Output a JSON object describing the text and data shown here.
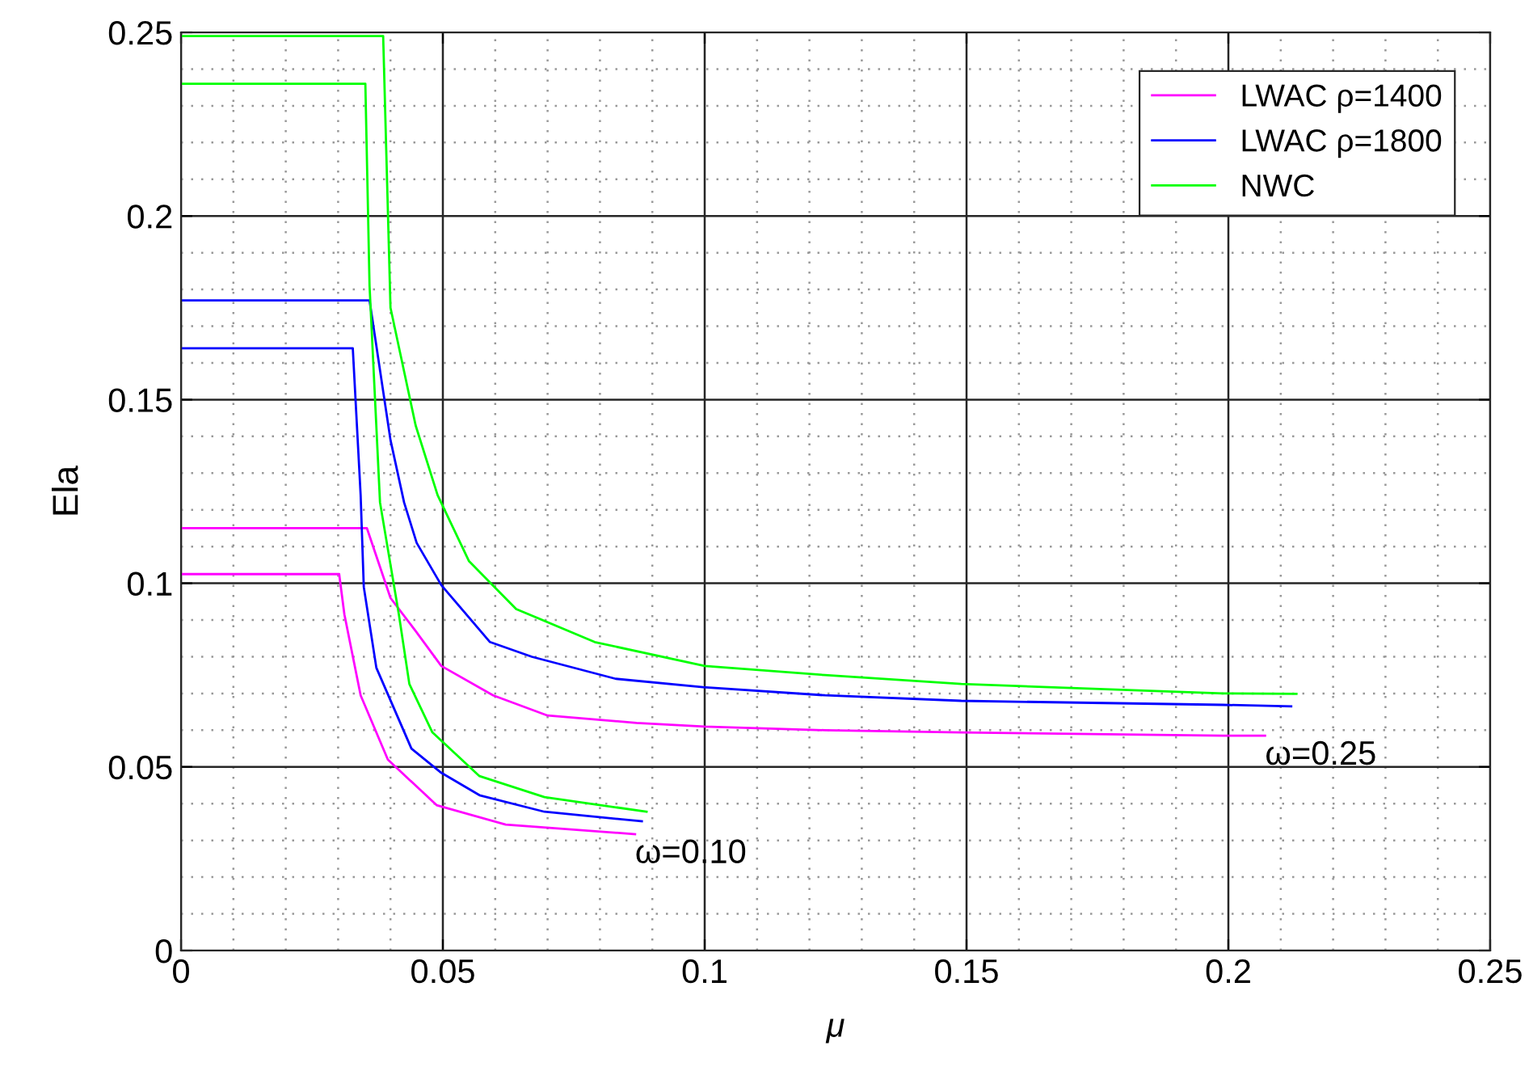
{
  "chart_data": {
    "type": "line",
    "xlabel": "μ",
    "ylabel": "Ela",
    "xlim": [
      0,
      0.25
    ],
    "ylim": [
      0,
      0.25
    ],
    "xticks": [
      0,
      0.05,
      0.1,
      0.15,
      0.2,
      0.25
    ],
    "yticks": [
      0,
      0.05,
      0.1,
      0.15,
      0.2,
      0.25
    ],
    "grid": true,
    "legend": "top right",
    "line_style": "solid",
    "marker": "none",
    "series": [
      {
        "name": "LWAC ρ=1400",
        "color": "#ff00ff",
        "x": [
          0,
          0.0355,
          0.04,
          0.0448,
          0.0497,
          0.0596,
          0.07,
          0.087,
          0.1,
          0.123,
          0.149,
          0.199,
          0.207
        ],
        "values": [
          0.115,
          0.115,
          0.096,
          0.087,
          0.0775,
          0.0695,
          0.064,
          0.062,
          0.061,
          0.06,
          0.0594,
          0.0585,
          0.0585
        ]
      },
      {
        "name": "LWAC ρ=1800",
        "color": "#0000ff",
        "x": [
          0,
          0.036,
          0.04,
          0.0426,
          0.045,
          0.0497,
          0.059,
          0.067,
          0.083,
          0.0997,
          0.123,
          0.149,
          0.199,
          0.212
        ],
        "values": [
          0.177,
          0.177,
          0.139,
          0.122,
          0.111,
          0.0995,
          0.084,
          0.08,
          0.074,
          0.0717,
          0.0695,
          0.068,
          0.0669,
          0.0665
        ]
      },
      {
        "name": "NWC",
        "color": "#00ff00",
        "x": [
          0,
          0.0386,
          0.04,
          0.0448,
          0.049,
          0.055,
          0.064,
          0.079,
          0.1,
          0.123,
          0.149,
          0.199,
          0.213
        ],
        "values": [
          0.249,
          0.249,
          0.175,
          0.143,
          0.124,
          0.106,
          0.093,
          0.084,
          0.0775,
          0.075,
          0.0726,
          0.07,
          0.0699
        ]
      },
      {
        "color": "#ff00ff",
        "x": [
          0,
          0.0302,
          0.0312,
          0.0343,
          0.0395,
          0.0488,
          0.062,
          0.0867
        ],
        "values": [
          0.1025,
          0.1025,
          0.0915,
          0.0695,
          0.052,
          0.0396,
          0.0343,
          0.0317
        ]
      },
      {
        "color": "#0000ff",
        "x": [
          0,
          0.0328,
          0.0343,
          0.0349,
          0.0373,
          0.044,
          0.0497,
          0.057,
          0.0694,
          0.088
        ],
        "values": [
          0.164,
          0.164,
          0.124,
          0.099,
          0.077,
          0.055,
          0.0484,
          0.0423,
          0.0378,
          0.0352
        ]
      },
      {
        "color": "#00ff00",
        "x": [
          0,
          0.0352,
          0.036,
          0.038,
          0.0416,
          0.0436,
          0.048,
          0.057,
          0.0694,
          0.0889
        ],
        "values": [
          0.236,
          0.236,
          0.181,
          0.122,
          0.0915,
          0.0726,
          0.0594,
          0.0475,
          0.0418,
          0.0378
        ]
      }
    ],
    "annotations": [
      {
        "text": "ω=0.10",
        "x": 0.0867,
        "y": 0.0317
      },
      {
        "text": "ω=0.25",
        "x": 0.207,
        "y": 0.0585
      }
    ]
  }
}
